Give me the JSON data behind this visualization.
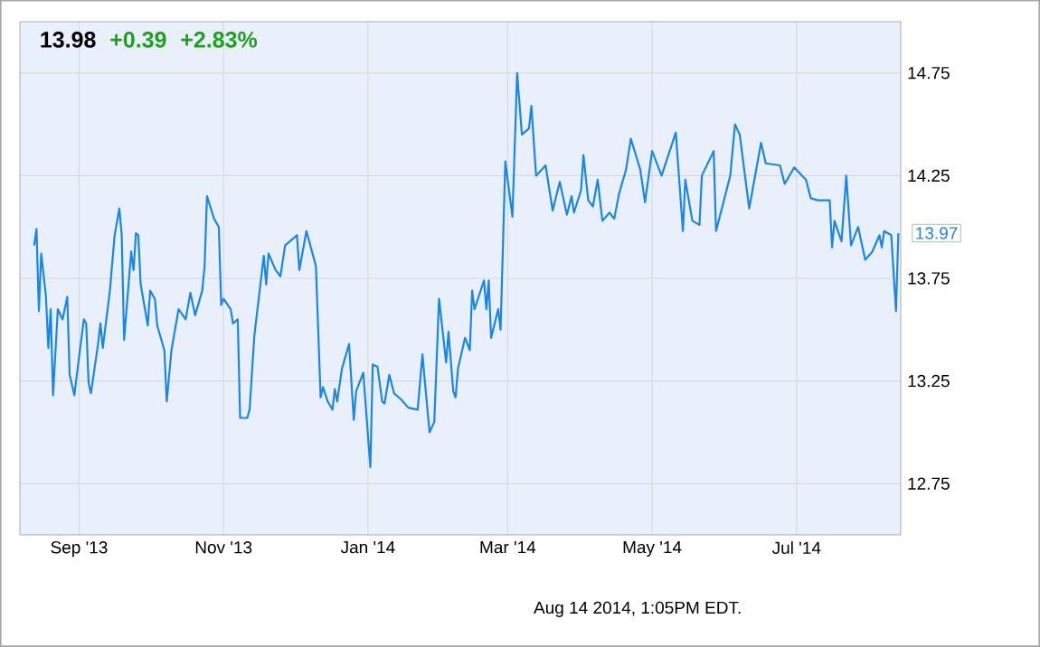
{
  "chart_data": {
    "type": "line",
    "x": [
      "2013-08-13",
      "2013-08-14",
      "2013-08-15",
      "2013-08-16",
      "2013-08-18",
      "2013-08-19",
      "2013-08-20",
      "2013-08-21",
      "2013-08-23",
      "2013-08-25",
      "2013-08-27",
      "2013-08-28",
      "2013-08-30",
      "2013-09-01",
      "2013-09-03",
      "2013-09-04",
      "2013-09-05",
      "2013-09-06",
      "2013-09-09",
      "2013-09-10",
      "2013-09-11",
      "2013-09-14",
      "2013-09-16",
      "2013-09-18",
      "2013-09-19",
      "2013-09-20",
      "2013-09-23",
      "2013-09-24",
      "2013-09-25",
      "2013-09-26",
      "2013-09-27",
      "2013-09-30",
      "2013-10-01",
      "2013-10-03",
      "2013-10-04",
      "2013-10-07",
      "2013-10-08",
      "2013-10-10",
      "2013-10-13",
      "2013-10-16",
      "2013-10-18",
      "2013-10-20",
      "2013-10-23",
      "2013-10-24",
      "2013-10-25",
      "2013-10-28",
      "2013-10-30",
      "2013-10-31",
      "2013-11-01",
      "2013-11-04",
      "2013-11-05",
      "2013-11-07",
      "2013-11-08",
      "2013-11-11",
      "2013-11-12",
      "2013-11-14",
      "2013-11-18",
      "2013-11-19",
      "2013-11-20",
      "2013-11-23",
      "2013-11-25",
      "2013-11-27",
      "2013-12-02",
      "2013-12-03",
      "2013-12-06",
      "2013-12-10",
      "2013-12-12",
      "2013-12-13",
      "2013-12-15",
      "2013-12-17",
      "2013-12-18",
      "2013-12-19",
      "2013-12-21",
      "2013-12-24",
      "2013-12-26",
      "2013-12-27",
      "2013-12-30",
      "2014-01-02",
      "2014-01-03",
      "2014-01-05",
      "2014-01-07",
      "2014-01-08",
      "2014-01-10",
      "2014-01-12",
      "2014-01-15",
      "2014-01-18",
      "2014-01-22",
      "2014-01-24",
      "2014-01-25",
      "2014-01-27",
      "2014-01-29",
      "2014-01-31",
      "2014-02-03",
      "2014-02-04",
      "2014-02-06",
      "2014-02-07",
      "2014-02-08",
      "2014-02-11",
      "2014-02-13",
      "2014-02-14",
      "2014-02-15",
      "2014-02-19",
      "2014-02-20",
      "2014-02-21",
      "2014-02-22",
      "2014-02-25",
      "2014-02-26",
      "2014-02-28",
      "2014-03-03",
      "2014-03-05",
      "2014-03-07",
      "2014-03-10",
      "2014-03-11",
      "2014-03-13",
      "2014-03-17",
      "2014-03-20",
      "2014-03-23",
      "2014-03-26",
      "2014-03-28",
      "2014-03-29",
      "2014-04-01",
      "2014-04-02",
      "2014-04-04",
      "2014-04-06",
      "2014-04-08",
      "2014-04-10",
      "2014-04-13",
      "2014-04-15",
      "2014-04-17",
      "2014-04-20",
      "2014-04-22",
      "2014-04-26",
      "2014-04-28",
      "2014-05-01",
      "2014-05-05",
      "2014-05-07",
      "2014-05-11",
      "2014-05-14",
      "2014-05-15",
      "2014-05-18",
      "2014-05-21",
      "2014-05-22",
      "2014-05-27",
      "2014-05-28",
      "2014-06-03",
      "2014-06-05",
      "2014-06-07",
      "2014-06-11",
      "2014-06-16",
      "2014-06-18",
      "2014-06-24",
      "2014-06-26",
      "2014-06-30",
      "2014-07-05",
      "2014-07-07",
      "2014-07-10",
      "2014-07-15",
      "2014-07-16",
      "2014-07-17",
      "2014-07-20",
      "2014-07-22",
      "2014-07-24",
      "2014-07-27",
      "2014-07-30",
      "2014-08-02",
      "2014-08-05",
      "2014-08-06",
      "2014-08-07",
      "2014-08-10",
      "2014-08-12",
      "2014-08-13"
    ],
    "values": [
      13.91,
      13.99,
      13.59,
      13.87,
      13.66,
      13.41,
      13.6,
      13.18,
      13.6,
      13.55,
      13.66,
      13.28,
      13.18,
      13.37,
      13.55,
      13.53,
      13.24,
      13.19,
      13.43,
      13.53,
      13.41,
      13.69,
      13.96,
      14.09,
      13.96,
      13.45,
      13.88,
      13.79,
      13.97,
      13.96,
      13.72,
      13.52,
      13.69,
      13.65,
      13.52,
      13.4,
      13.15,
      13.4,
      13.6,
      13.55,
      13.68,
      13.57,
      13.69,
      13.81,
      14.15,
      14.04,
      14.0,
      13.62,
      13.65,
      13.6,
      13.53,
      13.55,
      13.07,
      13.07,
      13.11,
      13.47,
      13.86,
      13.72,
      13.87,
      13.79,
      13.76,
      13.91,
      13.96,
      13.79,
      13.98,
      13.81,
      13.17,
      13.22,
      13.15,
      13.11,
      13.21,
      13.15,
      13.31,
      13.43,
      13.06,
      13.2,
      13.29,
      12.83,
      13.33,
      13.32,
      13.15,
      13.14,
      13.28,
      13.19,
      13.16,
      13.12,
      13.11,
      13.38,
      13.25,
      13.0,
      13.05,
      13.65,
      13.34,
      13.49,
      13.2,
      13.17,
      13.31,
      13.46,
      13.4,
      13.69,
      13.6,
      13.74,
      13.6,
      13.74,
      13.46,
      13.6,
      13.5,
      14.32,
      14.05,
      14.75,
      14.45,
      14.48,
      14.59,
      14.25,
      14.3,
      14.08,
      14.22,
      14.06,
      14.15,
      14.07,
      14.18,
      14.35,
      14.13,
      14.1,
      14.23,
      14.03,
      14.07,
      14.04,
      14.16,
      14.28,
      14.43,
      14.28,
      14.12,
      14.37,
      14.25,
      14.32,
      14.46,
      13.98,
      14.23,
      14.03,
      14.01,
      14.25,
      14.37,
      13.98,
      14.25,
      14.5,
      14.45,
      14.09,
      14.41,
      14.31,
      14.3,
      14.21,
      14.29,
      14.23,
      14.14,
      14.13,
      14.13,
      13.9,
      14.03,
      13.93,
      14.25,
      13.91,
      14.0,
      13.84,
      13.88,
      13.96,
      13.9,
      13.98,
      13.96,
      13.59,
      13.97
    ],
    "color": "#1a87e6",
    "xlim": [
      "2013-08-07",
      "2014-08-14"
    ],
    "xticks": [
      {
        "value": "2013-09-01",
        "label": "Sep '13"
      },
      {
        "value": "2013-11-01",
        "label": "Nov '13"
      },
      {
        "value": "2014-01-01",
        "label": "Jan '14"
      },
      {
        "value": "2014-03-01",
        "label": "Mar '14"
      },
      {
        "value": "2014-05-01",
        "label": "May '14"
      },
      {
        "value": "2014-07-01",
        "label": "Jul '14"
      }
    ],
    "ylim": [
      12.5,
      15.0
    ],
    "yticks": [
      12.75,
      13.25,
      13.75,
      14.25,
      14.75
    ],
    "grid": true,
    "line_style": "solid",
    "annotations": [
      "13.98",
      "+0.39",
      "+2.83%",
      {
        "text": "13.97",
        "x": "2014-08-13",
        "y": 13.97
      },
      "Aug 14 2014, 1:05PM EDT."
    ]
  }
}
